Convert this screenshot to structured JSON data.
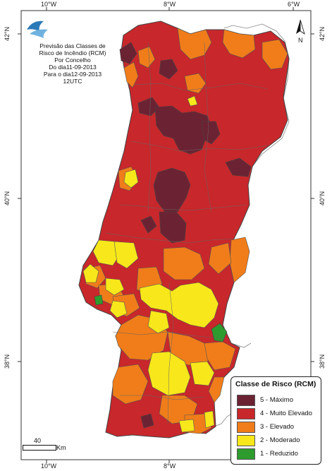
{
  "title_lines": [
    "Previsão das Classes de",
    "Risco de Incêndio (RCM)",
    "Por Concelho",
    "Do dia11-09-2013",
    "Para o dia12-09-2013",
    "12UTC"
  ],
  "graticule": {
    "top_labels": [
      "10°W",
      "8°W",
      "6°W"
    ],
    "bottom_labels": [
      "10°W",
      "8°W"
    ],
    "left_labels": [
      "42°N",
      "40°N",
      "38°N"
    ],
    "right_labels": [
      "42°N",
      "40°N",
      "38°N"
    ]
  },
  "legend": {
    "title": "Classe de Risco (RCM)",
    "classes": [
      {
        "label": "5 - Máximo",
        "color": "#6b2333"
      },
      {
        "label": "4 - Muito Elevado",
        "color": "#c8272b"
      },
      {
        "label": "3 - Elevado",
        "color": "#f07d1a"
      },
      {
        "label": "2 - Moderado",
        "color": "#f8e71a"
      },
      {
        "label": "1 - Reduzido",
        "color": "#2e9b2e"
      }
    ]
  },
  "scale": {
    "value": "40",
    "unit": "Km"
  },
  "north_arrow": {
    "letter": "N",
    "icon": "north-arrow-icon"
  },
  "logo": {
    "icon": "ipma-logo-icon"
  }
}
